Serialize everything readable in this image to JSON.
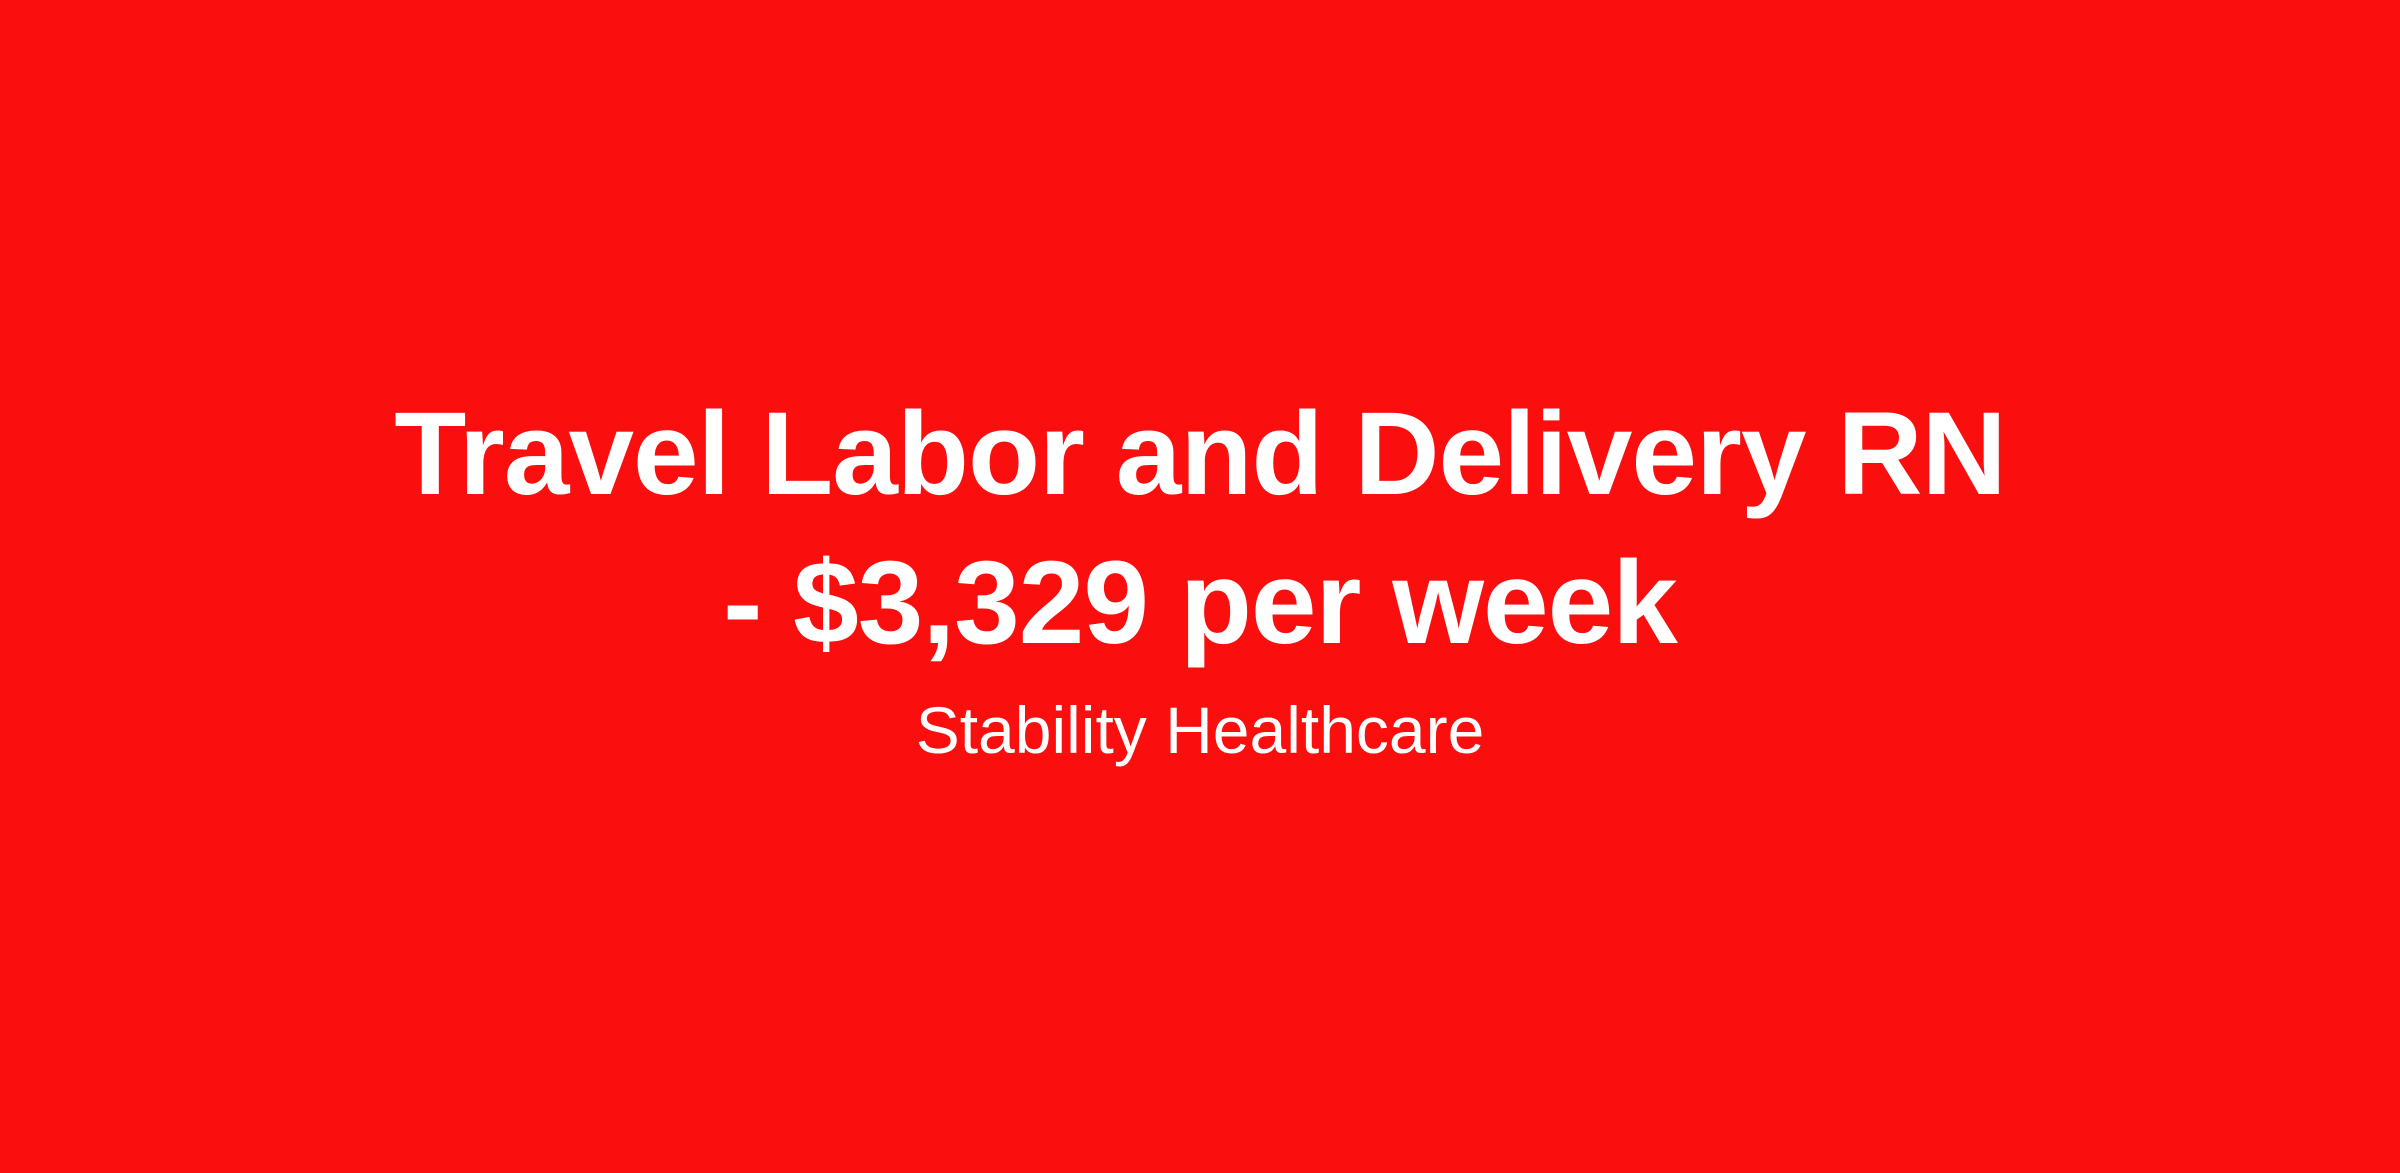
{
  "page": {
    "background_color": "#fa0e0e",
    "text_color": "#ffffff"
  },
  "job_posting": {
    "title_line1": "Travel Labor and Delivery RN",
    "title_line2": "- $3,329 per week",
    "company": "Stability Healthcare"
  }
}
